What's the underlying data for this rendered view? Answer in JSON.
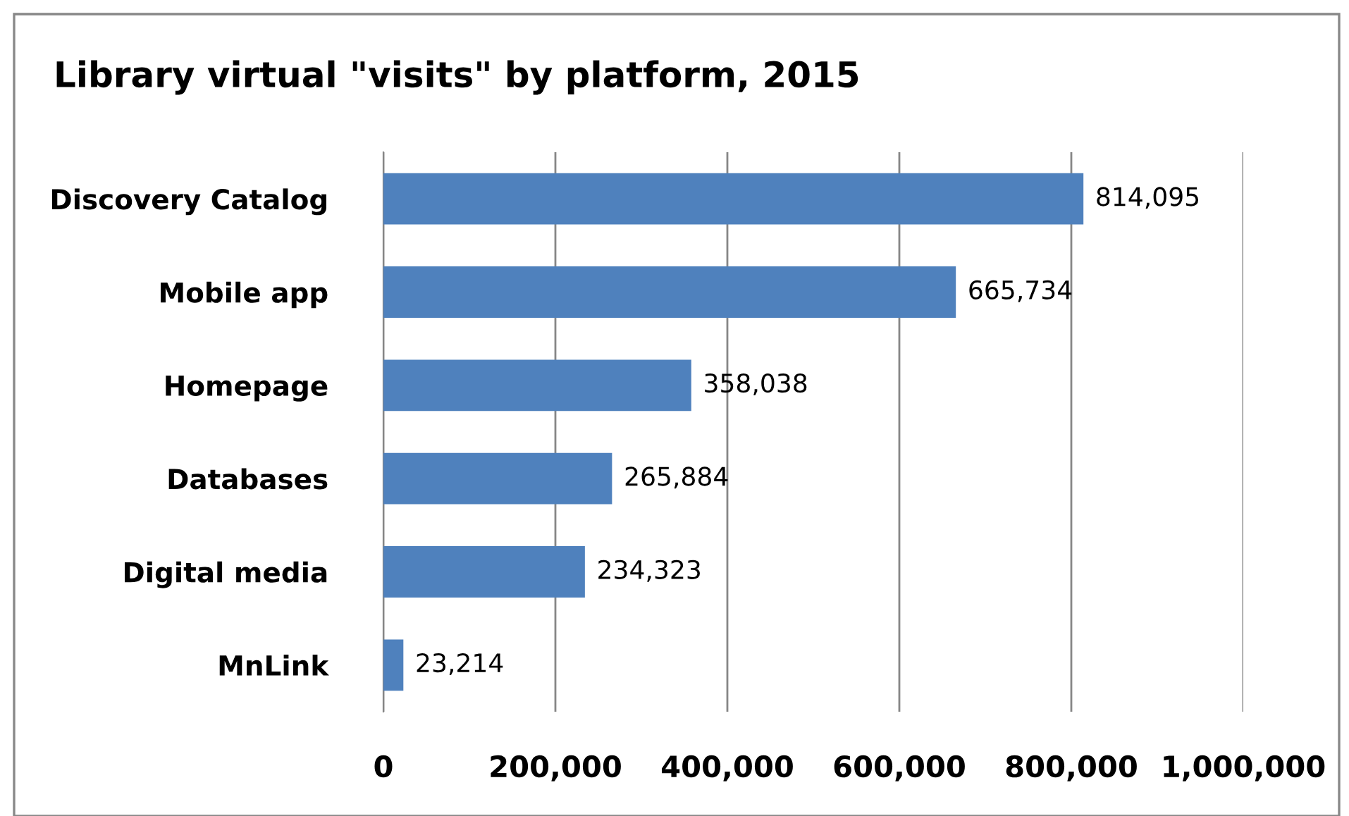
{
  "chart_data": {
    "type": "bar",
    "orientation": "horizontal",
    "title": "Library virtual \"visits\" by platform, 2015",
    "categories": [
      "Discovery Catalog",
      "Mobile app",
      "Homepage",
      "Databases",
      "Digital media",
      "MnLink"
    ],
    "values": [
      814095,
      665734,
      358038,
      265884,
      234323,
      23214
    ],
    "color": "#4f81bd",
    "value_labels": [
      "814,095",
      "665,734",
      "358,038",
      "265,884",
      "234,323",
      "23,214"
    ],
    "xlim": [
      0,
      1000000
    ],
    "xticks": [
      {
        "value": 0,
        "label": "0"
      },
      {
        "value": 200000,
        "label": "200,000"
      },
      {
        "value": 400000,
        "label": "400,000"
      },
      {
        "value": 600000,
        "label": "600,000"
      },
      {
        "value": 800000,
        "label": "800,000"
      },
      {
        "value": 1000000,
        "label": "1,000,000"
      }
    ],
    "grid": "x",
    "legend": false
  }
}
